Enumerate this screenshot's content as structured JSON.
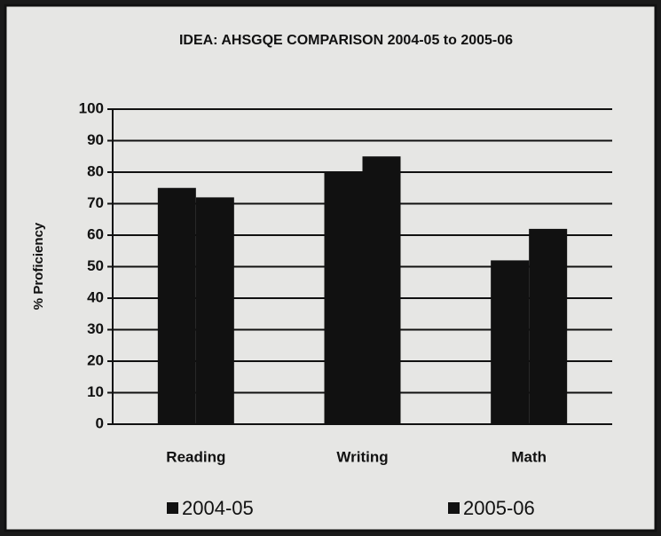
{
  "chart_data": {
    "type": "bar",
    "title": "IDEA: AHSGQE COMPARISON 2004-05 to 2005-06",
    "y_label": "% Proficiency",
    "categories": [
      "Reading",
      "Writing",
      "Math"
    ],
    "series": [
      {
        "name": "2004-05",
        "color": "#111111",
        "values": [
          75,
          80,
          52
        ]
      },
      {
        "name": "2005-06",
        "color": "#111111",
        "values": [
          72,
          85,
          62
        ]
      }
    ],
    "ylim": [
      0,
      100
    ],
    "yticks": [
      0,
      10,
      20,
      30,
      40,
      50,
      60,
      70,
      80,
      90,
      100
    ],
    "grid": true,
    "legend": "bottom"
  }
}
